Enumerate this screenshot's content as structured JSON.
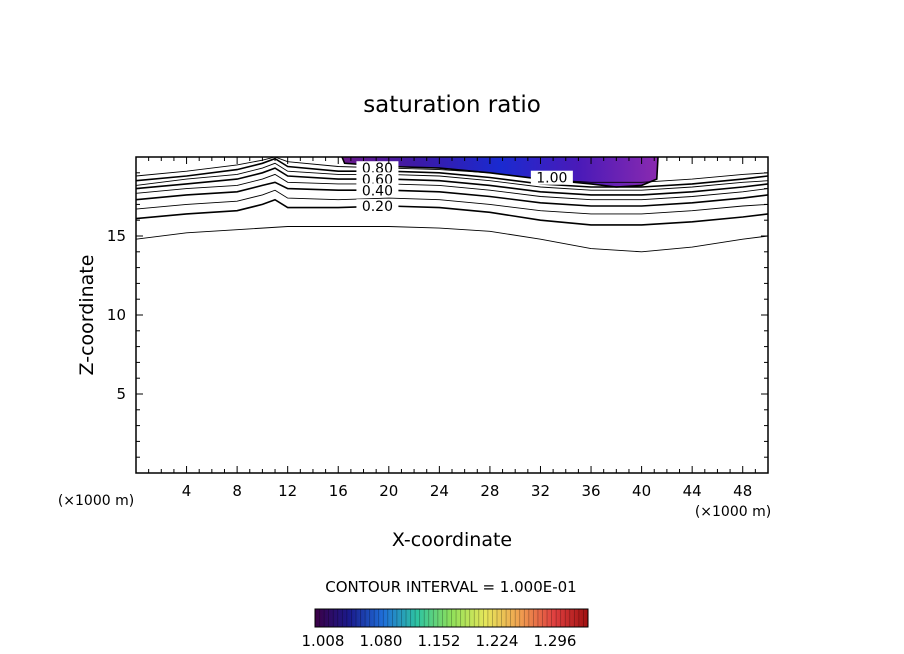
{
  "chart_data": {
    "type": "contour",
    "title": "saturation ratio",
    "xlabel": "X-coordinate",
    "ylabel": "Z-coordinate",
    "x_unit": "(×1000 m)",
    "xlim": [
      0,
      50
    ],
    "ylim": [
      0,
      20
    ],
    "x_ticks": [
      "4",
      "8",
      "12",
      "16",
      "20",
      "24",
      "28",
      "32",
      "36",
      "40",
      "44",
      "48"
    ],
    "y_ticks": [
      "5",
      "10",
      "15"
    ],
    "contour_interval_text": "CONTOUR INTERVAL = 1.000E-01",
    "contour_labels": [
      "0.80",
      "0.60",
      "0.40",
      "0.20",
      "1.00"
    ],
    "contours": [
      {
        "level": 0.1,
        "points": [
          [
            0,
            14.8
          ],
          [
            4,
            15.2
          ],
          [
            8,
            15.4
          ],
          [
            12,
            15.6
          ],
          [
            16,
            15.6
          ],
          [
            20,
            15.6
          ],
          [
            24,
            15.5
          ],
          [
            28,
            15.3
          ],
          [
            32,
            14.8
          ],
          [
            36,
            14.2
          ],
          [
            40,
            14.0
          ],
          [
            44,
            14.3
          ],
          [
            48,
            14.8
          ],
          [
            50,
            15.0
          ]
        ]
      },
      {
        "level": 0.2,
        "points": [
          [
            0,
            16.1
          ],
          [
            4,
            16.4
          ],
          [
            8,
            16.6
          ],
          [
            10,
            17.0
          ],
          [
            11,
            17.3
          ],
          [
            12,
            16.8
          ],
          [
            16,
            16.8
          ],
          [
            20,
            16.9
          ],
          [
            24,
            16.8
          ],
          [
            28,
            16.5
          ],
          [
            32,
            16.0
          ],
          [
            36,
            15.7
          ],
          [
            40,
            15.7
          ],
          [
            44,
            15.9
          ],
          [
            48,
            16.2
          ],
          [
            50,
            16.4
          ]
        ]
      },
      {
        "level": 0.3,
        "points": [
          [
            0,
            16.7
          ],
          [
            4,
            17.0
          ],
          [
            8,
            17.2
          ],
          [
            10,
            17.6
          ],
          [
            11,
            17.9
          ],
          [
            12,
            17.4
          ],
          [
            16,
            17.3
          ],
          [
            20,
            17.4
          ],
          [
            24,
            17.3
          ],
          [
            28,
            17.0
          ],
          [
            32,
            16.6
          ],
          [
            36,
            16.4
          ],
          [
            40,
            16.4
          ],
          [
            44,
            16.6
          ],
          [
            48,
            16.9
          ],
          [
            50,
            17.0
          ]
        ]
      },
      {
        "level": 0.4,
        "points": [
          [
            0,
            17.3
          ],
          [
            4,
            17.6
          ],
          [
            8,
            17.8
          ],
          [
            10,
            18.2
          ],
          [
            11,
            18.4
          ],
          [
            12,
            18.0
          ],
          [
            16,
            17.9
          ],
          [
            20,
            17.9
          ],
          [
            24,
            17.8
          ],
          [
            28,
            17.5
          ],
          [
            32,
            17.1
          ],
          [
            36,
            16.9
          ],
          [
            40,
            16.9
          ],
          [
            44,
            17.1
          ],
          [
            48,
            17.4
          ],
          [
            50,
            17.6
          ]
        ]
      },
      {
        "level": 0.5,
        "points": [
          [
            0,
            17.7
          ],
          [
            4,
            18.0
          ],
          [
            8,
            18.2
          ],
          [
            10,
            18.6
          ],
          [
            11,
            18.9
          ],
          [
            12,
            18.4
          ],
          [
            16,
            18.3
          ],
          [
            20,
            18.3
          ],
          [
            24,
            18.2
          ],
          [
            28,
            17.9
          ],
          [
            32,
            17.5
          ],
          [
            36,
            17.3
          ],
          [
            40,
            17.3
          ],
          [
            44,
            17.5
          ],
          [
            48,
            17.8
          ],
          [
            50,
            18.0
          ]
        ]
      },
      {
        "level": 0.6,
        "points": [
          [
            0,
            18.0
          ],
          [
            4,
            18.3
          ],
          [
            8,
            18.6
          ],
          [
            10,
            19.0
          ],
          [
            11,
            19.3
          ],
          [
            12,
            18.8
          ],
          [
            16,
            18.6
          ],
          [
            20,
            18.6
          ],
          [
            24,
            18.5
          ],
          [
            28,
            18.2
          ],
          [
            32,
            17.8
          ],
          [
            36,
            17.6
          ],
          [
            40,
            17.6
          ],
          [
            44,
            17.8
          ],
          [
            48,
            18.1
          ],
          [
            50,
            18.3
          ]
        ]
      },
      {
        "level": 0.7,
        "points": [
          [
            0,
            18.2
          ],
          [
            4,
            18.6
          ],
          [
            8,
            18.9
          ],
          [
            10,
            19.3
          ],
          [
            11,
            19.6
          ],
          [
            12,
            19.1
          ],
          [
            16,
            18.9
          ],
          [
            20,
            18.9
          ],
          [
            24,
            18.8
          ],
          [
            28,
            18.5
          ],
          [
            32,
            18.1
          ],
          [
            36,
            17.9
          ],
          [
            40,
            17.9
          ],
          [
            44,
            18.1
          ],
          [
            48,
            18.4
          ],
          [
            50,
            18.5
          ]
        ]
      },
      {
        "level": 0.8,
        "points": [
          [
            0,
            18.5
          ],
          [
            4,
            18.8
          ],
          [
            8,
            19.2
          ],
          [
            10,
            19.6
          ],
          [
            11,
            19.9
          ],
          [
            12,
            19.4
          ],
          [
            16,
            19.1
          ],
          [
            20,
            19.1
          ],
          [
            24,
            19.0
          ],
          [
            28,
            18.7
          ],
          [
            32,
            18.3
          ],
          [
            36,
            18.1
          ],
          [
            40,
            18.1
          ],
          [
            44,
            18.3
          ],
          [
            48,
            18.6
          ],
          [
            50,
            18.8
          ]
        ]
      },
      {
        "level": 0.9,
        "points": [
          [
            0,
            18.8
          ],
          [
            4,
            19.1
          ],
          [
            8,
            19.5
          ],
          [
            10,
            19.8
          ],
          [
            11,
            20.0
          ],
          [
            12,
            19.7
          ],
          [
            16,
            19.4
          ],
          [
            20,
            19.3
          ],
          [
            24,
            19.2
          ],
          [
            28,
            19.0
          ],
          [
            32,
            18.6
          ],
          [
            36,
            18.4
          ],
          [
            40,
            18.4
          ],
          [
            44,
            18.6
          ],
          [
            48,
            18.9
          ],
          [
            50,
            19.0
          ]
        ]
      },
      {
        "level": 1.0,
        "points": [
          [
            16.3,
            20.0
          ],
          [
            16.5,
            19.6
          ],
          [
            20,
            19.4
          ],
          [
            24,
            19.3
          ],
          [
            28,
            19.0
          ],
          [
            32,
            18.6
          ],
          [
            36,
            18.3
          ],
          [
            38,
            18.1
          ],
          [
            40,
            18.2
          ],
          [
            41.2,
            18.6
          ],
          [
            41.3,
            20.0
          ]
        ]
      }
    ],
    "fill_region": [
      [
        16.3,
        20
      ],
      [
        41.3,
        20
      ],
      [
        41.2,
        18.6
      ],
      [
        40,
        18.2
      ],
      [
        38,
        18.1
      ],
      [
        36,
        18.3
      ],
      [
        32,
        18.6
      ],
      [
        28,
        19.0
      ],
      [
        24,
        19.3
      ],
      [
        20,
        19.4
      ],
      [
        16.5,
        19.6
      ]
    ],
    "colorbar": {
      "ticks": [
        "1.008",
        "1.080",
        "1.152",
        "1.224",
        "1.296"
      ],
      "colors": [
        "#3c0046",
        "#1a1a8c",
        "#1f6fd9",
        "#2ec4a0",
        "#8fe05a",
        "#e6e65a",
        "#f0a050",
        "#e04040",
        "#a01010"
      ]
    },
    "fill_colors": [
      "#6a1a8a",
      "#3a1aa8",
      "#1a2ad0",
      "#4a1ab8",
      "#8a2ab0"
    ],
    "grid": false
  }
}
